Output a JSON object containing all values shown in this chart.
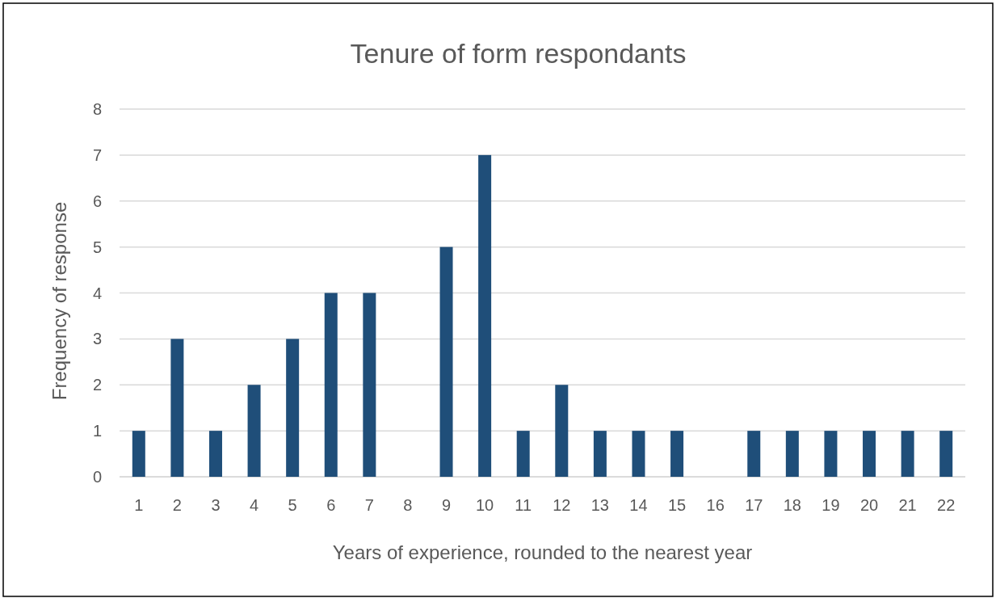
{
  "chart_data": {
    "type": "bar",
    "title": "Tenure of form respondants",
    "xlabel": "Years of experience, rounded to the nearest year",
    "ylabel": "Frequency of response",
    "categories": [
      "1",
      "2",
      "3",
      "4",
      "5",
      "6",
      "7",
      "8",
      "9",
      "10",
      "11",
      "12",
      "13",
      "14",
      "15",
      "16",
      "17",
      "18",
      "19",
      "20",
      "21",
      "22"
    ],
    "values": [
      1,
      3,
      1,
      2,
      3,
      4,
      4,
      0,
      5,
      7,
      1,
      2,
      1,
      1,
      1,
      0,
      1,
      1,
      1,
      1,
      1,
      1
    ],
    "color": "#1f4e79",
    "ylim": [
      0,
      8
    ],
    "yticks": [
      0,
      1,
      2,
      3,
      4,
      5,
      6,
      7,
      8
    ],
    "grid": "y"
  }
}
